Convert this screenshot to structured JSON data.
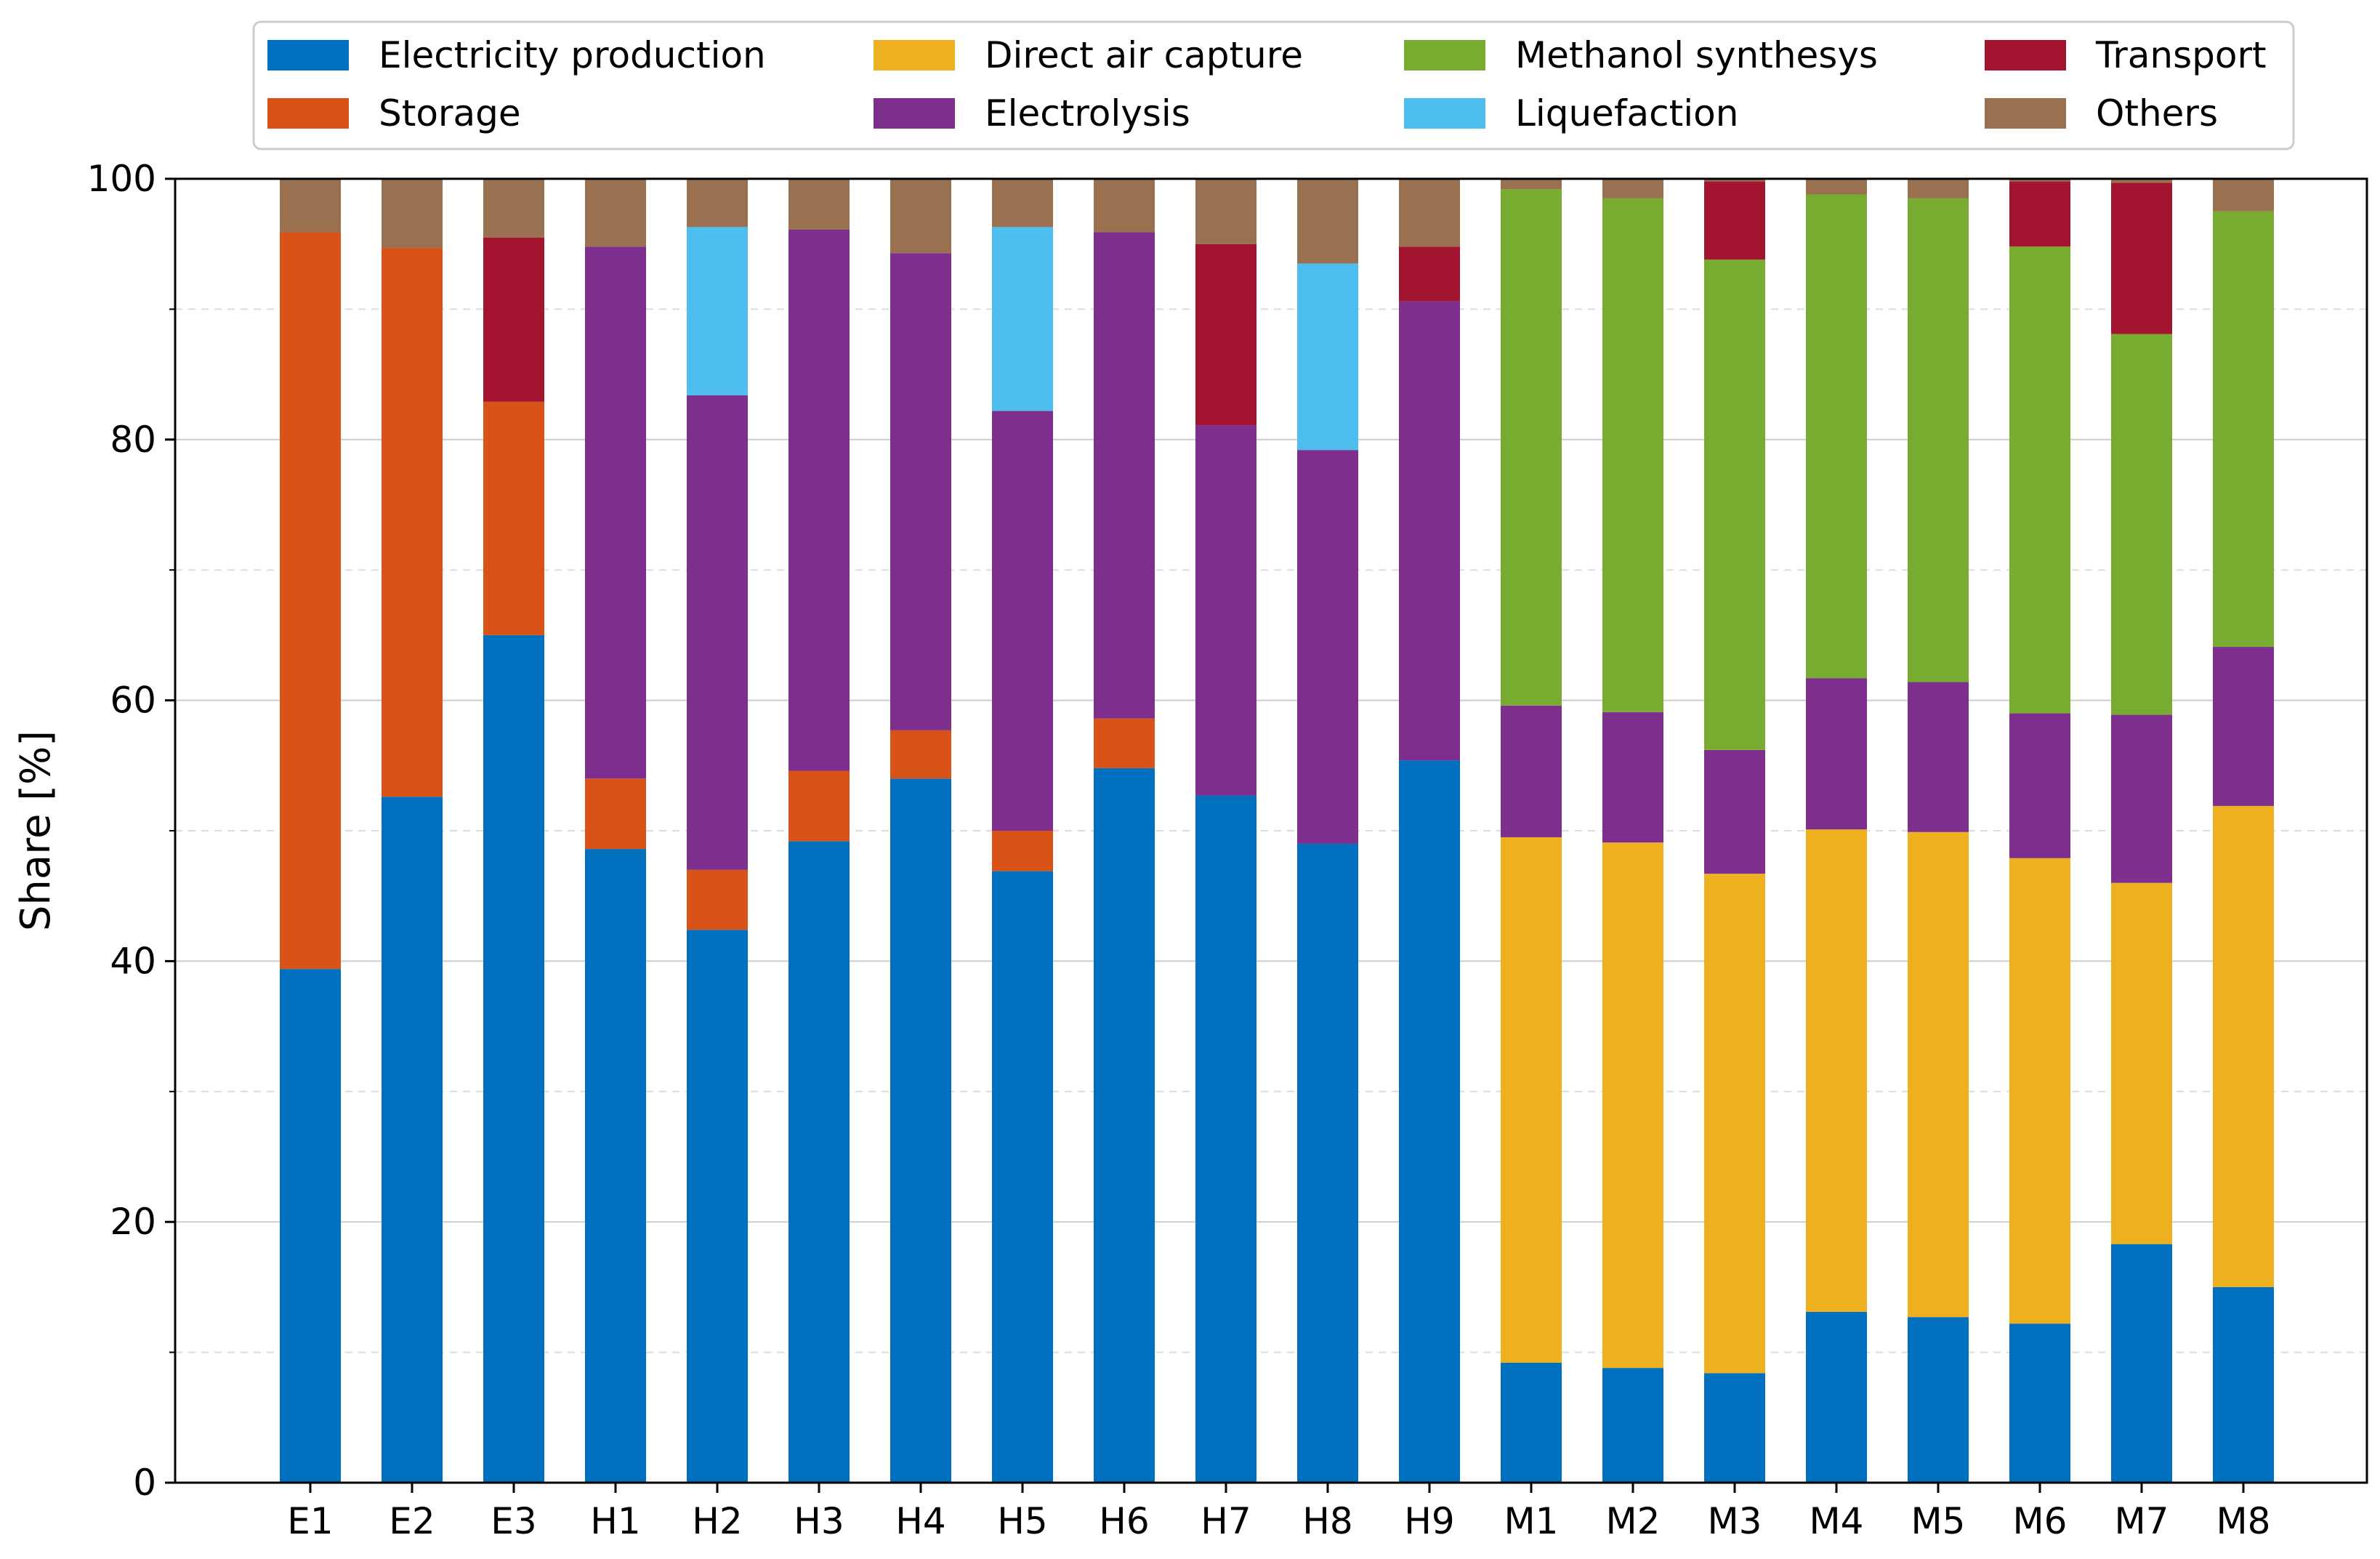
{
  "chart_data": {
    "type": "bar",
    "stacked": true,
    "title": "",
    "xlabel": "",
    "ylabel": "Share [%]",
    "ylim": [
      0,
      100
    ],
    "yticks": [
      0,
      20,
      40,
      60,
      80,
      100
    ],
    "grid": "horizontal, major solid and minor dashed",
    "legend_position": "top",
    "categories": [
      "E1",
      "E2",
      "E3",
      "H1",
      "H2",
      "H3",
      "H4",
      "H5",
      "H6",
      "H7",
      "H8",
      "H9",
      "M1",
      "M2",
      "M3",
      "M4",
      "M5",
      "M6",
      "M7",
      "M8"
    ],
    "series": [
      {
        "name": "Electricity production",
        "color": "#0070bf",
        "values": [
          39.4,
          52.6,
          65.0,
          48.6,
          42.4,
          49.2,
          54.0,
          46.9,
          54.8,
          52.7,
          49.0,
          55.4,
          9.2,
          8.8,
          8.4,
          13.1,
          12.7,
          12.2,
          18.3,
          15.0
        ]
      },
      {
        "name": "Storage",
        "color": "#d95319",
        "values": [
          56.5,
          42.1,
          17.9,
          5.4,
          4.6,
          5.4,
          3.7,
          3.1,
          3.8,
          0,
          0,
          0,
          0,
          0,
          0,
          0,
          0,
          0,
          0,
          0
        ]
      },
      {
        "name": "Direct air capture",
        "color": "#edb120",
        "values": [
          0,
          0,
          0,
          0,
          0,
          0,
          0,
          0,
          0,
          0,
          0,
          0,
          40.3,
          40.3,
          38.3,
          37.0,
          37.2,
          35.7,
          27.7,
          36.9
        ]
      },
      {
        "name": "Electrolysis",
        "color": "#7e2f8e",
        "values": [
          0,
          0,
          0,
          40.8,
          36.4,
          41.5,
          36.6,
          32.2,
          37.3,
          28.4,
          30.2,
          35.2,
          10.1,
          10.0,
          9.5,
          11.6,
          11.5,
          11.1,
          12.9,
          12.2
        ]
      },
      {
        "name": "Methanol synthesys",
        "color": "#77ac30",
        "values": [
          0,
          0,
          0,
          0,
          0,
          0,
          0,
          0,
          0,
          0,
          0,
          0,
          39.6,
          39.4,
          37.6,
          37.1,
          37.1,
          35.8,
          29.2,
          33.4
        ]
      },
      {
        "name": "Liquefaction",
        "color": "#4dbeee",
        "values": [
          0,
          0,
          0,
          0,
          12.9,
          0,
          0,
          14.1,
          0,
          0,
          14.3,
          0,
          0,
          0,
          0,
          0,
          0,
          0,
          0,
          0
        ]
      },
      {
        "name": "Transport",
        "color": "#a2142f",
        "values": [
          0,
          0,
          12.6,
          0,
          0,
          0,
          0,
          0,
          0,
          13.9,
          0,
          4.2,
          0,
          0,
          6.0,
          0,
          0,
          5.0,
          11.6,
          0
        ]
      },
      {
        "name": "Others",
        "color": "#997050",
        "values": [
          4.1,
          5.3,
          4.5,
          5.2,
          3.7,
          3.9,
          5.7,
          3.7,
          4.1,
          5.0,
          6.5,
          5.2,
          0.8,
          1.5,
          0.2,
          1.2,
          1.5,
          0.2,
          0.3,
          2.5
        ]
      }
    ]
  }
}
